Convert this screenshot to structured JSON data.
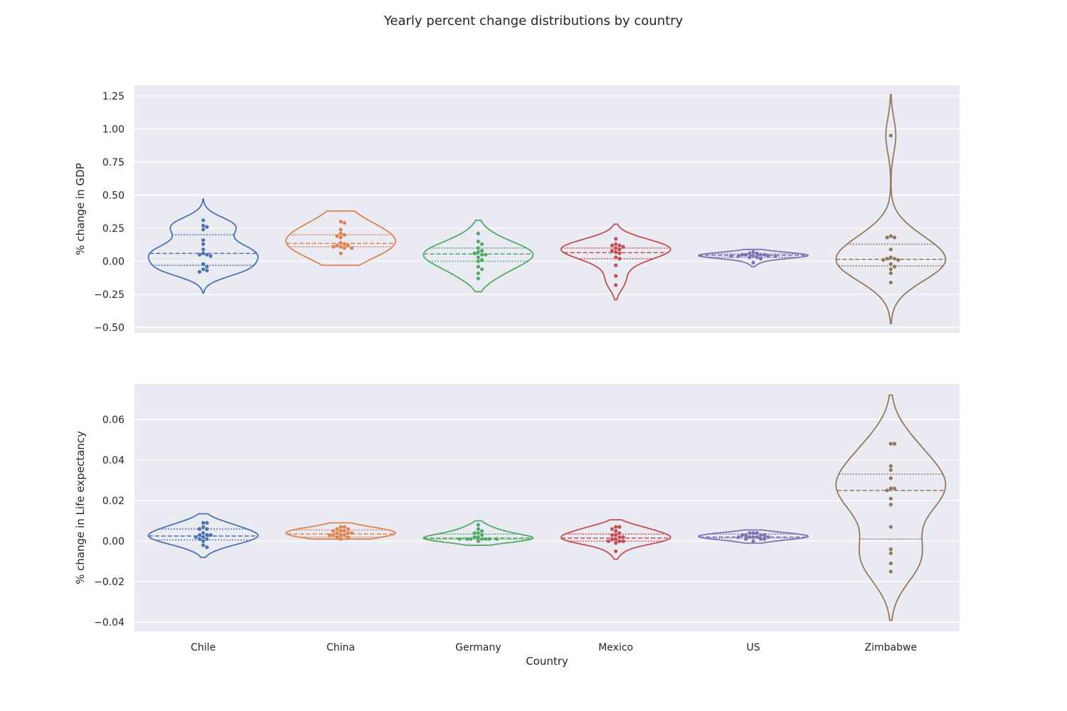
{
  "figure_title": "Yearly percent change distributions by country",
  "colors": {
    "Chile": "#4c72b0",
    "China": "#dd8452",
    "Germany": "#55a868",
    "Mexico": "#c44e52",
    "US": "#8172b3",
    "Zimbabwe": "#937860",
    "panel_bg": "#eaeaf2",
    "grid": "#ffffff",
    "text": "#262626"
  },
  "chart_data": [
    {
      "type": "violin",
      "subtype": "violin with swarm points and quartile lines",
      "title": "",
      "xlabel": "",
      "ylabel": "% change in GDP",
      "categories": [
        "Chile",
        "China",
        "Germany",
        "Mexico",
        "US",
        "Zimbabwe"
      ],
      "ylim": [
        -0.54,
        1.33
      ],
      "yticks": [
        -0.5,
        -0.25,
        0.0,
        0.25,
        0.5,
        0.75,
        1.0,
        1.25
      ],
      "ytick_labels": [
        "−0.50",
        "−0.25",
        "0.00",
        "0.25",
        "0.50",
        "0.75",
        "1.00",
        "1.25"
      ],
      "grid": true,
      "series": [
        {
          "category": "Chile",
          "quartiles": [
            -0.03,
            0.06,
            0.2
          ],
          "range": [
            -0.24,
            0.47
          ],
          "points": [
            0.31,
            0.27,
            0.26,
            0.24,
            0.16,
            0.13,
            0.09,
            0.06,
            0.05,
            0.05,
            0.04,
            -0.02,
            -0.04,
            -0.06,
            -0.07,
            -0.08
          ]
        },
        {
          "category": "China",
          "quartiles": [
            0.11,
            0.135,
            0.2
          ],
          "range": [
            -0.03,
            0.38
          ],
          "points": [
            0.3,
            0.29,
            0.24,
            0.21,
            0.2,
            0.19,
            0.18,
            0.14,
            0.13,
            0.12,
            0.12,
            0.11,
            0.11,
            0.1,
            0.1,
            0.06
          ]
        },
        {
          "category": "Germany",
          "quartiles": [
            0.0,
            0.055,
            0.1
          ],
          "range": [
            -0.23,
            0.31
          ],
          "points": [
            0.21,
            0.15,
            0.13,
            0.1,
            0.08,
            0.07,
            0.06,
            0.05,
            0.05,
            0.03,
            0.01,
            0.0,
            -0.04,
            -0.06,
            -0.09,
            -0.13
          ]
        },
        {
          "category": "Mexico",
          "quartiles": [
            0.02,
            0.065,
            0.1
          ],
          "range": [
            -0.29,
            0.28
          ],
          "points": [
            0.17,
            0.13,
            0.12,
            0.12,
            0.11,
            0.1,
            0.09,
            0.08,
            0.07,
            0.06,
            0.03,
            0.02,
            -0.03,
            -0.11,
            -0.18
          ]
        },
        {
          "category": "US",
          "quartiles": [
            0.03,
            0.045,
            0.055
          ],
          "range": [
            -0.04,
            0.09
          ],
          "points": [
            0.07,
            0.06,
            0.06,
            0.05,
            0.05,
            0.05,
            0.05,
            0.04,
            0.04,
            0.04,
            0.04,
            0.04,
            0.03,
            0.03,
            0.02,
            -0.01
          ]
        },
        {
          "category": "Zimbabwe",
          "quartiles": [
            -0.035,
            0.015,
            0.13
          ],
          "range": [
            -0.47,
            1.26
          ],
          "points": [
            0.95,
            0.19,
            0.18,
            0.18,
            0.09,
            0.03,
            0.02,
            0.02,
            0.01,
            0.01,
            -0.02,
            -0.04,
            -0.06,
            -0.09,
            -0.16
          ]
        }
      ]
    },
    {
      "type": "violin",
      "subtype": "violin with swarm points and quartile lines",
      "title": "",
      "xlabel": "Country",
      "ylabel": "% change in Life expectancy",
      "categories": [
        "Chile",
        "China",
        "Germany",
        "Mexico",
        "US",
        "Zimbabwe"
      ],
      "ylim": [
        -0.0445,
        0.0775
      ],
      "yticks": [
        -0.04,
        -0.02,
        0.0,
        0.02,
        0.04,
        0.06
      ],
      "ytick_labels": [
        "−0.04",
        "−0.02",
        "0.00",
        "0.02",
        "0.04",
        "0.06"
      ],
      "grid": true,
      "series": [
        {
          "category": "Chile",
          "quartiles": [
            0.0005,
            0.0025,
            0.006
          ],
          "range": [
            -0.008,
            0.0135
          ],
          "points": [
            0.009,
            0.009,
            0.007,
            0.006,
            0.006,
            0.004,
            0.003,
            0.003,
            0.003,
            0.002,
            0.002,
            0.001,
            0.001,
            0.0,
            -0.002,
            -0.003
          ]
        },
        {
          "category": "China",
          "quartiles": [
            0.002,
            0.0035,
            0.0055
          ],
          "range": [
            0.001,
            0.009
          ],
          "points": [
            0.007,
            0.007,
            0.006,
            0.006,
            0.005,
            0.005,
            0.005,
            0.004,
            0.004,
            0.004,
            0.003,
            0.003,
            0.003,
            0.003,
            0.002,
            0.002,
            0.001
          ]
        },
        {
          "category": "Germany",
          "quartiles": [
            0.001,
            0.0015,
            0.0035
          ],
          "range": [
            -0.002,
            0.01
          ],
          "points": [
            0.008,
            0.006,
            0.005,
            0.004,
            0.004,
            0.003,
            0.002,
            0.002,
            0.001,
            0.001,
            0.001,
            0.001,
            0.001,
            0.001,
            0.001,
            0.0
          ]
        },
        {
          "category": "Mexico",
          "quartiles": [
            0.0,
            0.0015,
            0.0035
          ],
          "range": [
            -0.009,
            0.0105
          ],
          "points": [
            0.007,
            0.007,
            0.006,
            0.005,
            0.004,
            0.003,
            0.003,
            0.002,
            0.002,
            0.001,
            0.001,
            0.0,
            0.0,
            0.0,
            -0.001,
            -0.005
          ]
        },
        {
          "category": "US",
          "quartiles": [
            0.0015,
            0.002,
            0.0035
          ],
          "range": [
            -0.001,
            0.0055
          ],
          "points": [
            0.004,
            0.004,
            0.004,
            0.003,
            0.003,
            0.003,
            0.003,
            0.002,
            0.002,
            0.002,
            0.002,
            0.002,
            0.001,
            0.001,
            0.001,
            0.0
          ]
        },
        {
          "category": "Zimbabwe",
          "quartiles": [
            0.001,
            0.025,
            0.033
          ],
          "range": [
            -0.039,
            0.072
          ],
          "points": [
            0.048,
            0.048,
            0.037,
            0.035,
            0.031,
            0.026,
            0.026,
            0.025,
            0.021,
            0.018,
            0.007,
            -0.004,
            -0.006,
            -0.011,
            -0.015
          ]
        }
      ]
    }
  ]
}
